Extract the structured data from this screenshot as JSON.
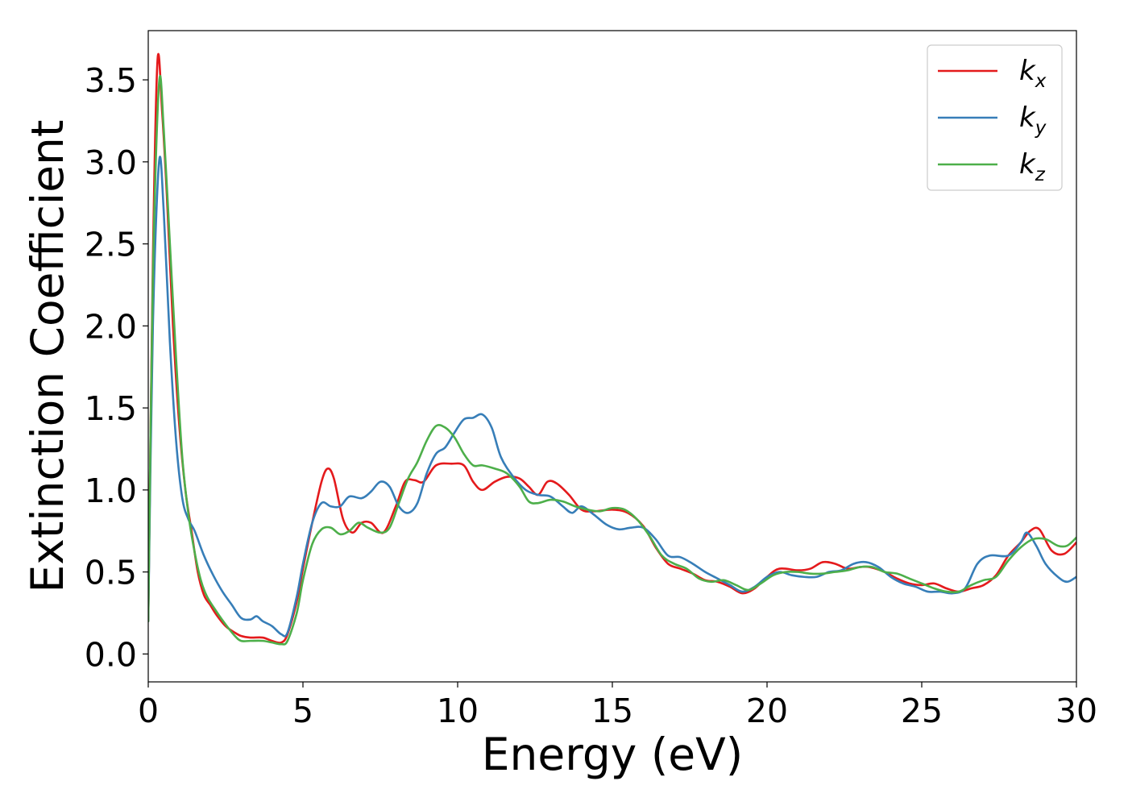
{
  "chart_data": {
    "type": "line",
    "xlabel": "Energy (eV)",
    "ylabel": "Extinction Coefficient",
    "xlim": [
      0,
      30
    ],
    "ylim": [
      -0.17,
      3.8
    ],
    "xticks": [
      "0",
      "5",
      "10",
      "15",
      "20",
      "25",
      "30"
    ],
    "yticks": [
      "0.0",
      "0.5",
      "1.0",
      "1.5",
      "2.0",
      "2.5",
      "3.0",
      "3.5"
    ],
    "grid": false,
    "legend_position": "top-right",
    "series": [
      {
        "name": "k",
        "subscript": "x",
        "color": "#e41a1c",
        "points": [
          [
            0,
            0.2
          ],
          [
            0.15,
            2.4
          ],
          [
            0.3,
            3.62
          ],
          [
            0.45,
            3.3
          ],
          [
            0.6,
            2.8
          ],
          [
            0.8,
            2.0
          ],
          [
            1.0,
            1.4
          ],
          [
            1.2,
            1.0
          ],
          [
            1.4,
            0.75
          ],
          [
            1.6,
            0.5
          ],
          [
            1.8,
            0.36
          ],
          [
            2.0,
            0.3
          ],
          [
            2.2,
            0.24
          ],
          [
            2.5,
            0.17
          ],
          [
            2.8,
            0.13
          ],
          [
            3.0,
            0.11
          ],
          [
            3.3,
            0.1
          ],
          [
            3.7,
            0.1
          ],
          [
            4.0,
            0.08
          ],
          [
            4.3,
            0.07
          ],
          [
            4.5,
            0.12
          ],
          [
            4.8,
            0.32
          ],
          [
            5.0,
            0.52
          ],
          [
            5.3,
            0.8
          ],
          [
            5.6,
            1.05
          ],
          [
            5.8,
            1.13
          ],
          [
            6.0,
            1.07
          ],
          [
            6.3,
            0.82
          ],
          [
            6.6,
            0.74
          ],
          [
            6.9,
            0.8
          ],
          [
            7.2,
            0.8
          ],
          [
            7.6,
            0.74
          ],
          [
            8.0,
            0.9
          ],
          [
            8.3,
            1.05
          ],
          [
            8.6,
            1.06
          ],
          [
            8.9,
            1.05
          ],
          [
            9.3,
            1.15
          ],
          [
            9.8,
            1.16
          ],
          [
            10.2,
            1.15
          ],
          [
            10.5,
            1.05
          ],
          [
            10.8,
            1.0
          ],
          [
            11.2,
            1.05
          ],
          [
            11.6,
            1.08
          ],
          [
            12.0,
            1.07
          ],
          [
            12.3,
            1.02
          ],
          [
            12.6,
            0.97
          ],
          [
            12.9,
            1.05
          ],
          [
            13.2,
            1.04
          ],
          [
            13.6,
            0.97
          ],
          [
            14.0,
            0.88
          ],
          [
            14.4,
            0.87
          ],
          [
            15.0,
            0.88
          ],
          [
            15.5,
            0.86
          ],
          [
            16.0,
            0.78
          ],
          [
            16.4,
            0.65
          ],
          [
            16.8,
            0.55
          ],
          [
            17.2,
            0.52
          ],
          [
            17.6,
            0.49
          ],
          [
            18.0,
            0.45
          ],
          [
            18.4,
            0.44
          ],
          [
            18.8,
            0.41
          ],
          [
            19.2,
            0.37
          ],
          [
            19.6,
            0.4
          ],
          [
            20.0,
            0.47
          ],
          [
            20.4,
            0.52
          ],
          [
            21.0,
            0.51
          ],
          [
            21.4,
            0.52
          ],
          [
            21.8,
            0.56
          ],
          [
            22.2,
            0.55
          ],
          [
            22.6,
            0.52
          ],
          [
            23.0,
            0.53
          ],
          [
            23.3,
            0.53
          ],
          [
            23.8,
            0.5
          ],
          [
            24.2,
            0.46
          ],
          [
            24.6,
            0.43
          ],
          [
            25.0,
            0.42
          ],
          [
            25.4,
            0.43
          ],
          [
            25.8,
            0.4
          ],
          [
            26.2,
            0.38
          ],
          [
            26.6,
            0.4
          ],
          [
            27.0,
            0.42
          ],
          [
            27.4,
            0.48
          ],
          [
            27.8,
            0.6
          ],
          [
            28.2,
            0.68
          ],
          [
            28.5,
            0.75
          ],
          [
            28.8,
            0.76
          ],
          [
            29.2,
            0.63
          ],
          [
            29.6,
            0.61
          ],
          [
            30.0,
            0.68
          ]
        ]
      },
      {
        "name": "k",
        "subscript": "y",
        "color": "#377eb8",
        "points": [
          [
            0,
            0.2
          ],
          [
            0.15,
            2.0
          ],
          [
            0.35,
            3.0
          ],
          [
            0.5,
            2.7
          ],
          [
            0.7,
            1.9
          ],
          [
            0.9,
            1.3
          ],
          [
            1.1,
            0.95
          ],
          [
            1.3,
            0.82
          ],
          [
            1.5,
            0.75
          ],
          [
            1.8,
            0.6
          ],
          [
            2.1,
            0.48
          ],
          [
            2.4,
            0.38
          ],
          [
            2.7,
            0.3
          ],
          [
            3.0,
            0.22
          ],
          [
            3.3,
            0.21
          ],
          [
            3.5,
            0.23
          ],
          [
            3.7,
            0.2
          ],
          [
            4.0,
            0.17
          ],
          [
            4.3,
            0.12
          ],
          [
            4.5,
            0.13
          ],
          [
            4.8,
            0.35
          ],
          [
            5.0,
            0.55
          ],
          [
            5.3,
            0.8
          ],
          [
            5.6,
            0.92
          ],
          [
            5.9,
            0.9
          ],
          [
            6.2,
            0.9
          ],
          [
            6.5,
            0.96
          ],
          [
            6.9,
            0.95
          ],
          [
            7.2,
            0.99
          ],
          [
            7.5,
            1.05
          ],
          [
            7.8,
            1.02
          ],
          [
            8.1,
            0.9
          ],
          [
            8.4,
            0.86
          ],
          [
            8.7,
            0.92
          ],
          [
            9.0,
            1.1
          ],
          [
            9.3,
            1.22
          ],
          [
            9.6,
            1.26
          ],
          [
            9.9,
            1.35
          ],
          [
            10.2,
            1.43
          ],
          [
            10.5,
            1.44
          ],
          [
            10.8,
            1.46
          ],
          [
            11.1,
            1.38
          ],
          [
            11.4,
            1.2
          ],
          [
            11.8,
            1.08
          ],
          [
            12.2,
            1.0
          ],
          [
            12.6,
            0.97
          ],
          [
            13.0,
            0.96
          ],
          [
            13.4,
            0.9
          ],
          [
            13.7,
            0.86
          ],
          [
            14.0,
            0.9
          ],
          [
            14.4,
            0.85
          ],
          [
            14.8,
            0.79
          ],
          [
            15.2,
            0.76
          ],
          [
            15.6,
            0.77
          ],
          [
            16.0,
            0.77
          ],
          [
            16.4,
            0.7
          ],
          [
            16.8,
            0.6
          ],
          [
            17.2,
            0.59
          ],
          [
            17.6,
            0.55
          ],
          [
            18.0,
            0.5
          ],
          [
            18.4,
            0.46
          ],
          [
            18.8,
            0.42
          ],
          [
            19.2,
            0.38
          ],
          [
            19.6,
            0.41
          ],
          [
            20.0,
            0.47
          ],
          [
            20.4,
            0.5
          ],
          [
            20.8,
            0.48
          ],
          [
            21.2,
            0.47
          ],
          [
            21.6,
            0.47
          ],
          [
            22.0,
            0.5
          ],
          [
            22.4,
            0.51
          ],
          [
            22.8,
            0.55
          ],
          [
            23.2,
            0.56
          ],
          [
            23.6,
            0.53
          ],
          [
            24.0,
            0.47
          ],
          [
            24.4,
            0.43
          ],
          [
            24.8,
            0.41
          ],
          [
            25.2,
            0.38
          ],
          [
            25.6,
            0.38
          ],
          [
            26.0,
            0.37
          ],
          [
            26.4,
            0.4
          ],
          [
            26.8,
            0.55
          ],
          [
            27.2,
            0.6
          ],
          [
            27.8,
            0.6
          ],
          [
            28.2,
            0.68
          ],
          [
            28.4,
            0.74
          ],
          [
            28.7,
            0.66
          ],
          [
            29.0,
            0.55
          ],
          [
            29.4,
            0.47
          ],
          [
            29.7,
            0.44
          ],
          [
            30.0,
            0.47
          ]
        ]
      },
      {
        "name": "k",
        "subscript": "z",
        "color": "#4daf4a",
        "points": [
          [
            0,
            0.2
          ],
          [
            0.15,
            2.3
          ],
          [
            0.35,
            3.48
          ],
          [
            0.5,
            3.2
          ],
          [
            0.7,
            2.5
          ],
          [
            0.9,
            1.8
          ],
          [
            1.1,
            1.2
          ],
          [
            1.3,
            0.85
          ],
          [
            1.5,
            0.62
          ],
          [
            1.7,
            0.45
          ],
          [
            1.9,
            0.35
          ],
          [
            2.2,
            0.26
          ],
          [
            2.5,
            0.18
          ],
          [
            2.8,
            0.11
          ],
          [
            3.0,
            0.08
          ],
          [
            3.3,
            0.08
          ],
          [
            3.7,
            0.08
          ],
          [
            4.0,
            0.07
          ],
          [
            4.3,
            0.06
          ],
          [
            4.5,
            0.08
          ],
          [
            4.8,
            0.25
          ],
          [
            5.0,
            0.45
          ],
          [
            5.3,
            0.67
          ],
          [
            5.6,
            0.76
          ],
          [
            5.9,
            0.77
          ],
          [
            6.2,
            0.73
          ],
          [
            6.5,
            0.75
          ],
          [
            6.8,
            0.8
          ],
          [
            7.1,
            0.77
          ],
          [
            7.5,
            0.74
          ],
          [
            7.8,
            0.77
          ],
          [
            8.1,
            0.92
          ],
          [
            8.4,
            1.07
          ],
          [
            8.7,
            1.17
          ],
          [
            9.0,
            1.3
          ],
          [
            9.3,
            1.39
          ],
          [
            9.6,
            1.38
          ],
          [
            9.9,
            1.32
          ],
          [
            10.2,
            1.22
          ],
          [
            10.5,
            1.15
          ],
          [
            10.8,
            1.15
          ],
          [
            11.2,
            1.13
          ],
          [
            11.6,
            1.1
          ],
          [
            12.0,
            1.02
          ],
          [
            12.3,
            0.93
          ],
          [
            12.6,
            0.92
          ],
          [
            13.0,
            0.94
          ],
          [
            13.4,
            0.93
          ],
          [
            13.8,
            0.9
          ],
          [
            14.2,
            0.88
          ],
          [
            14.6,
            0.87
          ],
          [
            15.0,
            0.89
          ],
          [
            15.4,
            0.88
          ],
          [
            15.8,
            0.82
          ],
          [
            16.2,
            0.72
          ],
          [
            16.6,
            0.6
          ],
          [
            17.0,
            0.55
          ],
          [
            17.4,
            0.52
          ],
          [
            17.8,
            0.46
          ],
          [
            18.2,
            0.44
          ],
          [
            18.6,
            0.45
          ],
          [
            19.0,
            0.42
          ],
          [
            19.4,
            0.39
          ],
          [
            19.8,
            0.43
          ],
          [
            20.2,
            0.48
          ],
          [
            20.6,
            0.5
          ],
          [
            21.0,
            0.5
          ],
          [
            21.4,
            0.49
          ],
          [
            21.8,
            0.49
          ],
          [
            22.2,
            0.5
          ],
          [
            22.6,
            0.51
          ],
          [
            23.0,
            0.53
          ],
          [
            23.4,
            0.53
          ],
          [
            23.8,
            0.5
          ],
          [
            24.2,
            0.49
          ],
          [
            24.6,
            0.46
          ],
          [
            25.0,
            0.43
          ],
          [
            25.4,
            0.4
          ],
          [
            25.8,
            0.38
          ],
          [
            26.2,
            0.38
          ],
          [
            26.6,
            0.42
          ],
          [
            27.0,
            0.45
          ],
          [
            27.4,
            0.47
          ],
          [
            27.8,
            0.57
          ],
          [
            28.2,
            0.65
          ],
          [
            28.6,
            0.7
          ],
          [
            29.0,
            0.7
          ],
          [
            29.4,
            0.66
          ],
          [
            29.7,
            0.66
          ],
          [
            30.0,
            0.71
          ]
        ]
      }
    ]
  }
}
